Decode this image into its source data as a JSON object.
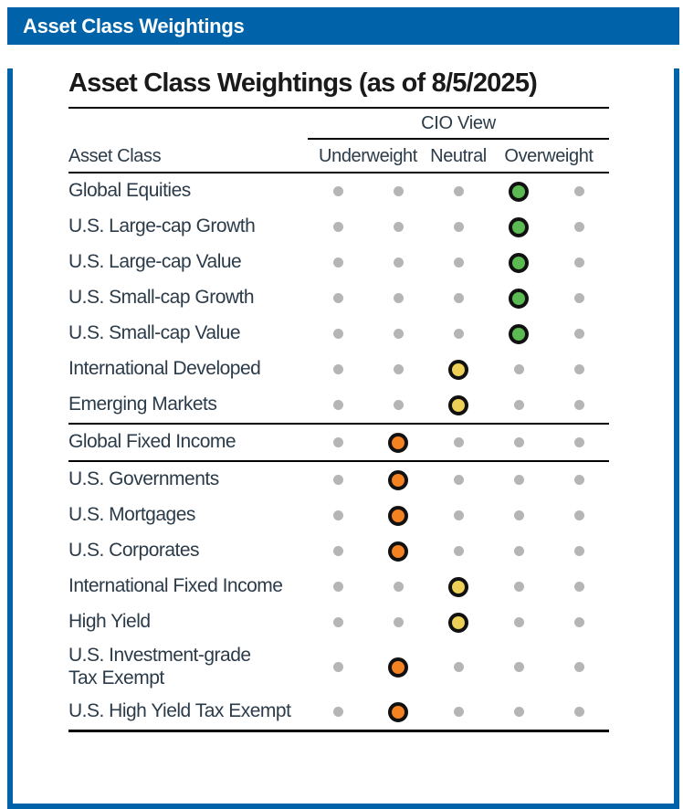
{
  "colors": {
    "brand_blue": "#0062A8",
    "text_dark": "#1A1A1A",
    "label_color": "#2B3B49",
    "inactive_dot": "#B5B5B5",
    "overweight_green": "#5CBA52",
    "neutral_yellow": "#EDD055",
    "underweight_orange": "#F58220",
    "ring_black": "#111111"
  },
  "window_header": {
    "title": "Asset Class Weightings"
  },
  "chart_data": {
    "type": "table",
    "title": "Asset Class Weightings (as of 8/5/2025)",
    "group_header": "CIO View",
    "row_header": "Asset Class",
    "columns": [
      "Underweight",
      "Neutral",
      "Overweight"
    ],
    "scale": {
      "positions": 5,
      "mapping": [
        "underweight",
        "slight underweight",
        "neutral",
        "slight overweight",
        "overweight"
      ]
    },
    "rows": [
      {
        "label": "Global Equities",
        "position": 4,
        "view": "slight overweight",
        "dot_color": "green",
        "separator_after": false
      },
      {
        "label": "U.S. Large-cap Growth",
        "position": 4,
        "view": "slight overweight",
        "dot_color": "green",
        "separator_after": false
      },
      {
        "label": "U.S. Large-cap Value",
        "position": 4,
        "view": "slight overweight",
        "dot_color": "green",
        "separator_after": false
      },
      {
        "label": "U.S. Small-cap Growth",
        "position": 4,
        "view": "slight overweight",
        "dot_color": "green",
        "separator_after": false
      },
      {
        "label": "U.S. Small-cap Value",
        "position": 4,
        "view": "slight overweight",
        "dot_color": "green",
        "separator_after": false
      },
      {
        "label": "International Developed",
        "position": 3,
        "view": "neutral",
        "dot_color": "yellow",
        "separator_after": false
      },
      {
        "label": "Emerging Markets",
        "position": 3,
        "view": "neutral",
        "dot_color": "yellow",
        "separator_after": true
      },
      {
        "label": "Global Fixed Income",
        "position": 2,
        "view": "slight underweight",
        "dot_color": "orange",
        "separator_after": true
      },
      {
        "label": "U.S. Governments",
        "position": 2,
        "view": "slight underweight",
        "dot_color": "orange",
        "separator_after": false
      },
      {
        "label": "U.S. Mortgages",
        "position": 2,
        "view": "slight underweight",
        "dot_color": "orange",
        "separator_after": false
      },
      {
        "label": "U.S. Corporates",
        "position": 2,
        "view": "slight underweight",
        "dot_color": "orange",
        "separator_after": false
      },
      {
        "label": "International Fixed Income",
        "position": 3,
        "view": "neutral",
        "dot_color": "yellow",
        "separator_after": false
      },
      {
        "label": "High Yield",
        "position": 3,
        "view": "neutral",
        "dot_color": "yellow",
        "separator_after": false
      },
      {
        "label": "U.S. Investment-grade\nTax Exempt",
        "position": 2,
        "view": "slight underweight",
        "dot_color": "orange",
        "separator_after": false
      },
      {
        "label": "U.S. High Yield Tax Exempt",
        "position": 2,
        "view": "slight underweight",
        "dot_color": "orange",
        "separator_after": false
      }
    ]
  }
}
